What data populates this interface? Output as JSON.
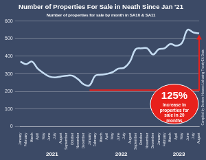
{
  "chart_data": {
    "type": "line",
    "title": "Number of Properties For Sale in Neath Since Jan '21",
    "subtitle": "Number of properties for sale by month in SA10 & SA11",
    "categories": [
      "January",
      "February",
      "March",
      "April",
      "May",
      "June",
      "July",
      "August",
      "September",
      "October",
      "November",
      "December",
      "January",
      "February",
      "March",
      "April",
      "May",
      "June",
      "July",
      "August",
      "September",
      "October",
      "November",
      "December",
      "January",
      "February",
      "March",
      "April",
      "May",
      "June",
      "July",
      "August"
    ],
    "years": [
      "2021",
      "2022",
      "2023"
    ],
    "values": [
      370,
      355,
      370,
      330,
      305,
      285,
      280,
      285,
      290,
      290,
      270,
      240,
      235,
      290,
      295,
      300,
      310,
      330,
      335,
      370,
      440,
      445,
      445,
      410,
      440,
      445,
      470,
      460,
      475,
      550,
      535,
      530
    ],
    "color": "#c5dcf2",
    "ylim": [
      0,
      600
    ],
    "yticks": [
      0,
      100,
      200,
      300,
      400,
      500,
      600
    ],
    "grid": true,
    "annotation": {
      "headline": "125%",
      "text": "increase in properties for sale in 20 months",
      "color": "#e8211c"
    },
    "source": "Compiled by Dexters Houses Ltd using TwentyEA Data"
  }
}
